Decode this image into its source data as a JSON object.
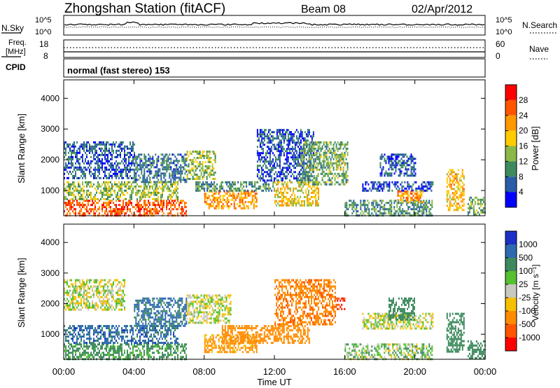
{
  "header": {
    "station": "Zhongshan Station (fitACF)",
    "beam": "Beam 08",
    "date": "02/Apr/2012"
  },
  "noise_panel": {
    "left_label": "N.Sky",
    "left_ticks": [
      "10^5",
      "10^0"
    ],
    "right_label": "N.Search",
    "right_ticks": [
      "10^5",
      "10^0"
    ]
  },
  "freq_panel": {
    "left_label_line1": "Freq.",
    "left_label_line2": "[MHz]",
    "left_ticks": [
      "18",
      "8"
    ],
    "right_label": "Nave",
    "right_ticks": [
      "60",
      "0"
    ]
  },
  "cpid_panel": {
    "label": "CPID",
    "text": "normal (fast stereo) 153"
  },
  "power_colorbar": {
    "label": "Power [dB]",
    "ticks": [
      "28",
      "24",
      "20",
      "16",
      "12",
      "8",
      "4"
    ],
    "colors": [
      "#ff0000",
      "#ff5500",
      "#ff9900",
      "#ffcc00",
      "#8ab84a",
      "#3e8a5e",
      "#2a5ca8",
      "#0000ff"
    ]
  },
  "velocity_colorbar": {
    "label": "Velocity [m s⁻¹]",
    "ticks": [
      "1000",
      "500",
      "100",
      "25",
      "-25",
      "-100",
      "-500",
      "-1000"
    ],
    "colors": [
      "#1c30c8",
      "#2e6ab0",
      "#3e8a5e",
      "#55c030",
      "#c8c8c0",
      "#f5c000",
      "#ff8c00",
      "#ff5500",
      "#ff0000"
    ]
  },
  "x_axis": {
    "ticks": [
      "00:00",
      "04:00",
      "08:00",
      "12:00",
      "16:00",
      "20:00",
      "00:00"
    ],
    "label": "Time UT"
  },
  "y_axis": {
    "label": "Slant Range [km]",
    "ticks": [
      "1000",
      "2000",
      "3000",
      "4000"
    ]
  },
  "chart_data": [
    {
      "type": "heatmap",
      "panel": "power",
      "xlim": [
        0,
        24
      ],
      "ylim": [
        180,
        4600
      ],
      "x_unit": "hours UT",
      "y_unit": "km",
      "value_unit": "dB",
      "scatter_regions": [
        {
          "t0": 0.0,
          "t1": 7.0,
          "r0": 180,
          "r1": 700,
          "v": 26
        },
        {
          "t0": 0.0,
          "t1": 6.5,
          "r0": 700,
          "r1": 1300,
          "v": 14
        },
        {
          "t0": 0.0,
          "t1": 4.0,
          "r0": 1400,
          "r1": 2600,
          "v": 6
        },
        {
          "t0": 4.0,
          "t1": 7.0,
          "r0": 1300,
          "r1": 2200,
          "v": 8
        },
        {
          "t0": 7.0,
          "t1": 8.6,
          "r0": 1400,
          "r1": 2300,
          "v": 14
        },
        {
          "t0": 8.0,
          "t1": 11.0,
          "r0": 400,
          "r1": 1000,
          "v": 22
        },
        {
          "t0": 7.5,
          "t1": 12.0,
          "r0": 1000,
          "r1": 1300,
          "v": 10
        },
        {
          "t0": 11.0,
          "t1": 14.2,
          "r0": 1300,
          "r1": 3000,
          "v": 6
        },
        {
          "t0": 12.0,
          "t1": 14.5,
          "r0": 500,
          "r1": 1300,
          "v": 18
        },
        {
          "t0": 13.5,
          "t1": 16.2,
          "r0": 1200,
          "r1": 2600,
          "v": 12
        },
        {
          "t0": 15.5,
          "t1": 16.0,
          "r0": 1700,
          "r1": 2200,
          "v": 16
        },
        {
          "t0": 16.0,
          "t1": 21.0,
          "r0": 180,
          "r1": 700,
          "v": 10
        },
        {
          "t0": 17.0,
          "t1": 21.0,
          "r0": 1000,
          "r1": 1300,
          "v": 5
        },
        {
          "t0": 18.0,
          "t1": 20.0,
          "r0": 1500,
          "r1": 2200,
          "v": 6
        },
        {
          "t0": 19.0,
          "t1": 20.5,
          "r0": 600,
          "r1": 1000,
          "v": 22
        },
        {
          "t0": 21.8,
          "t1": 22.8,
          "r0": 400,
          "r1": 1700,
          "v": 20
        },
        {
          "t0": 23.0,
          "t1": 24.0,
          "r0": 200,
          "r1": 800,
          "v": 12
        }
      ]
    },
    {
      "type": "heatmap",
      "panel": "velocity",
      "xlim": [
        0,
        24
      ],
      "ylim": [
        180,
        4600
      ],
      "x_unit": "hours UT",
      "y_unit": "km",
      "value_unit": "m s^-1",
      "scatter_regions": [
        {
          "t0": 0.0,
          "t1": 7.0,
          "r0": 180,
          "r1": 700,
          "v": 150
        },
        {
          "t0": 0.0,
          "t1": 6.5,
          "r0": 700,
          "r1": 1300,
          "v": 700
        },
        {
          "t0": 0.0,
          "t1": 3.5,
          "r0": 1800,
          "r1": 2800,
          "v": 0
        },
        {
          "t0": 4.0,
          "t1": 7.0,
          "r0": 1300,
          "r1": 2200,
          "v": 600
        },
        {
          "t0": 7.0,
          "t1": 9.5,
          "r0": 1400,
          "r1": 2300,
          "v": 0
        },
        {
          "t0": 8.0,
          "t1": 11.0,
          "r0": 400,
          "r1": 1000,
          "v": -150
        },
        {
          "t0": 9.0,
          "t1": 14.0,
          "r0": 700,
          "r1": 1300,
          "v": -300
        },
        {
          "t0": 12.0,
          "t1": 15.5,
          "r0": 1300,
          "r1": 2800,
          "v": -400
        },
        {
          "t0": 15.4,
          "t1": 16.0,
          "r0": 1800,
          "r1": 2200,
          "v": -900
        },
        {
          "t0": 16.0,
          "t1": 21.0,
          "r0": 180,
          "r1": 700,
          "v": 50
        },
        {
          "t0": 17.0,
          "t1": 21.0,
          "r0": 1200,
          "r1": 1700,
          "v": 0
        },
        {
          "t0": 18.5,
          "t1": 20.0,
          "r0": 1500,
          "r1": 2200,
          "v": 200
        },
        {
          "t0": 21.8,
          "t1": 22.8,
          "r0": 400,
          "r1": 1700,
          "v": 200
        },
        {
          "t0": 23.0,
          "t1": 24.0,
          "r0": 200,
          "r1": 800,
          "v": 300
        }
      ]
    }
  ]
}
